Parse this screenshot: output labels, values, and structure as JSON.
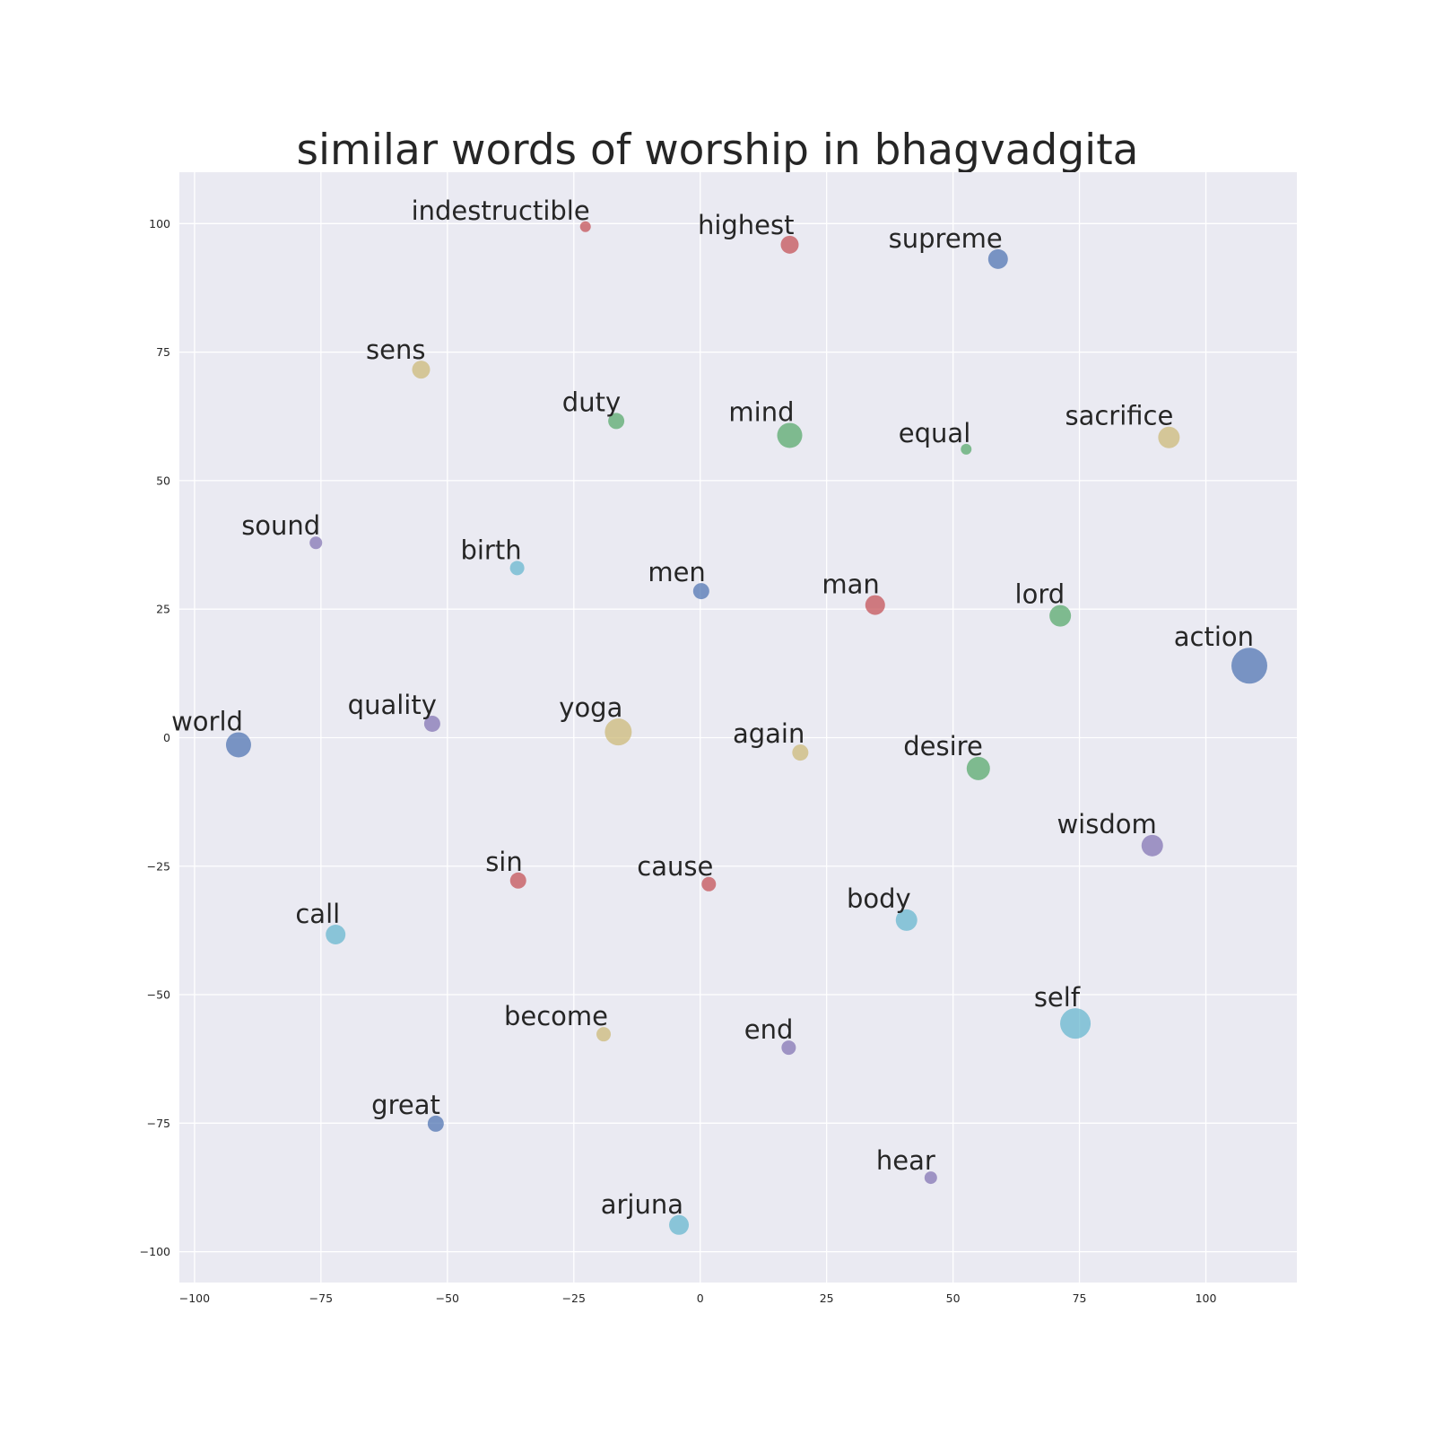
{
  "chart_data": {
    "type": "scatter",
    "title": "similar words of worship in bhagvadgita",
    "xlabel": "",
    "ylabel": "",
    "xlim": [
      -103,
      118
    ],
    "ylim": [
      -106,
      110
    ],
    "xticks": [
      -100,
      -75,
      -50,
      -25,
      0,
      25,
      50,
      75,
      100
    ],
    "yticks": [
      -100,
      -75,
      -50,
      -25,
      0,
      25,
      50,
      75,
      100
    ],
    "xtick_labels": [
      "−100",
      "−75",
      "−50",
      "−25",
      "0",
      "25",
      "50",
      "75",
      "100"
    ],
    "ytick_labels": [
      "−100",
      "−75",
      "−50",
      "−25",
      "0",
      "25",
      "50",
      "75",
      "100"
    ],
    "grid": true,
    "style": "seaborn darkgrid",
    "colors": {
      "background": "#eaeaf2",
      "grid": "#ffffff",
      "blue": "#4c72b0",
      "green": "#55a868",
      "red": "#c44e52",
      "purple": "#8172b2",
      "yellow": "#ccb974",
      "cyan": "#64b5cd"
    },
    "points": [
      {
        "label": "indestructible",
        "x": -22.7,
        "y": 99.4,
        "size": 6,
        "color": "#c44e52"
      },
      {
        "label": "highest",
        "x": 17.7,
        "y": 95.9,
        "size": 10,
        "color": "#c44e52"
      },
      {
        "label": "supreme",
        "x": 58.9,
        "y": 93.1,
        "size": 11,
        "color": "#4c72b0"
      },
      {
        "label": "sens",
        "x": -55.2,
        "y": 71.6,
        "size": 10,
        "color": "#ccb974"
      },
      {
        "label": "duty",
        "x": -16.6,
        "y": 61.6,
        "size": 9,
        "color": "#55a868"
      },
      {
        "label": "mind",
        "x": 17.7,
        "y": 58.8,
        "size": 14,
        "color": "#55a868"
      },
      {
        "label": "equal",
        "x": 52.6,
        "y": 56.1,
        "size": 6,
        "color": "#55a868"
      },
      {
        "label": "sacrifice",
        "x": 92.7,
        "y": 58.4,
        "size": 12,
        "color": "#ccb974"
      },
      {
        "label": "sound",
        "x": -76.0,
        "y": 37.9,
        "size": 7,
        "color": "#8172b2"
      },
      {
        "label": "birth",
        "x": -36.2,
        "y": 33.0,
        "size": 8,
        "color": "#64b5cd"
      },
      {
        "label": "men",
        "x": 0.2,
        "y": 28.5,
        "size": 9,
        "color": "#4c72b0"
      },
      {
        "label": "man",
        "x": 34.6,
        "y": 25.8,
        "size": 11,
        "color": "#c44e52"
      },
      {
        "label": "lord",
        "x": 71.2,
        "y": 23.7,
        "size": 12,
        "color": "#55a868"
      },
      {
        "label": "action",
        "x": 108.6,
        "y": 14.0,
        "size": 20,
        "color": "#4c72b0"
      },
      {
        "label": "world",
        "x": -91.3,
        "y": -1.4,
        "size": 14,
        "color": "#4c72b0"
      },
      {
        "label": "quality",
        "x": -53.0,
        "y": 2.7,
        "size": 9,
        "color": "#8172b2"
      },
      {
        "label": "yoga",
        "x": -16.2,
        "y": 1.1,
        "size": 15,
        "color": "#ccb974"
      },
      {
        "label": "again",
        "x": 19.8,
        "y": -2.9,
        "size": 9,
        "color": "#ccb974"
      },
      {
        "label": "desire",
        "x": 55.0,
        "y": -6.0,
        "size": 13,
        "color": "#55a868"
      },
      {
        "label": "wisdom",
        "x": 89.4,
        "y": -21.0,
        "size": 12,
        "color": "#8172b2"
      },
      {
        "label": "sin",
        "x": -36.0,
        "y": -27.8,
        "size": 9,
        "color": "#c44e52"
      },
      {
        "label": "cause",
        "x": 1.7,
        "y": -28.5,
        "size": 8,
        "color": "#c44e52"
      },
      {
        "label": "call",
        "x": -72.1,
        "y": -38.3,
        "size": 11,
        "color": "#64b5cd"
      },
      {
        "label": "body",
        "x": 40.8,
        "y": -35.5,
        "size": 12,
        "color": "#64b5cd"
      },
      {
        "label": "become",
        "x": -19.1,
        "y": -57.7,
        "size": 8,
        "color": "#ccb974"
      },
      {
        "label": "end",
        "x": 17.5,
        "y": -60.3,
        "size": 8,
        "color": "#8172b2"
      },
      {
        "label": "self",
        "x": 74.2,
        "y": -55.6,
        "size": 17,
        "color": "#64b5cd"
      },
      {
        "label": "great",
        "x": -52.3,
        "y": -75.1,
        "size": 9,
        "color": "#4c72b0"
      },
      {
        "label": "hear",
        "x": 45.6,
        "y": -85.6,
        "size": 7,
        "color": "#8172b2"
      },
      {
        "label": "arjuna",
        "x": -4.2,
        "y": -94.8,
        "size": 11,
        "color": "#64b5cd"
      }
    ]
  }
}
